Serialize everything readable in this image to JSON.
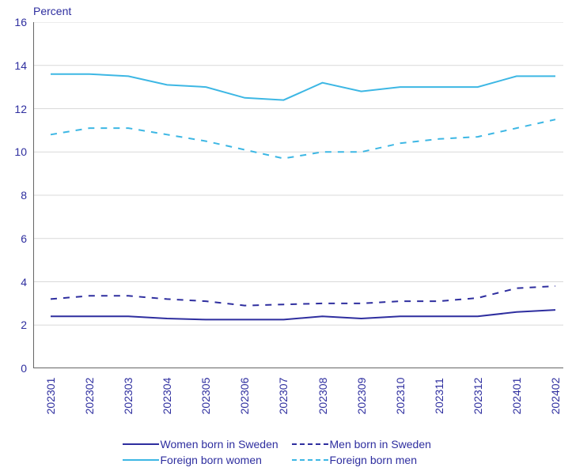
{
  "chart": {
    "type": "line",
    "y_axis_title": "Percent",
    "y_axis_title_color": "#2e2e9f",
    "y_axis_title_fontsize": 14,
    "background_color": "#ffffff",
    "plot_background": "#ffffff",
    "grid_color": "#d9d9d9",
    "axis_line_color": "#666666",
    "tick_color": "#666666",
    "tick_label_color": "#2e2e9f",
    "tick_label_fontsize": 14,
    "ylim": [
      0,
      16
    ],
    "ytick_step": 2,
    "yticks": [
      0,
      2,
      4,
      6,
      8,
      10,
      12,
      14,
      16
    ],
    "x_categories": [
      "202301",
      "202302",
      "202303",
      "202304",
      "202305",
      "202306",
      "202307",
      "202308",
      "202309",
      "202310",
      "202311",
      "202312",
      "202401",
      "202402"
    ],
    "x_tick_rotation": -90,
    "line_width": 2,
    "series": [
      {
        "name": "Women born in Sweden",
        "label": "Women born in Sweden",
        "color": "#2e2e9f",
        "dash": "solid",
        "values": [
          2.4,
          2.4,
          2.4,
          2.3,
          2.25,
          2.25,
          2.25,
          2.4,
          2.3,
          2.4,
          2.4,
          2.4,
          2.6,
          2.7
        ]
      },
      {
        "name": "Men born in Sweden",
        "label": "Men born in Sweden",
        "color": "#2e2e9f",
        "dash": "dashed",
        "values": [
          3.2,
          3.35,
          3.35,
          3.2,
          3.1,
          2.9,
          2.95,
          3.0,
          3.0,
          3.1,
          3.1,
          3.25,
          3.7,
          3.8
        ]
      },
      {
        "name": "Foreign born women",
        "label": "Foreign born women",
        "color": "#3db7e4",
        "dash": "solid",
        "values": [
          13.6,
          13.6,
          13.5,
          13.1,
          13.0,
          12.5,
          12.4,
          13.2,
          12.8,
          13.0,
          13.0,
          13.0,
          13.5,
          13.5
        ]
      },
      {
        "name": "Foreign born men",
        "label": "Foreign born men",
        "color": "#3db7e4",
        "dash": "dashed",
        "values": [
          10.8,
          11.1,
          11.1,
          10.8,
          10.5,
          10.1,
          9.7,
          10.0,
          10.0,
          10.4,
          10.6,
          10.7,
          11.1,
          11.5
        ]
      }
    ],
    "dash_pattern": "8 8",
    "legend_position": "bottom",
    "legend_color": "#2e2e9f",
    "legend_fontsize": 14,
    "legend_rows": [
      [
        "Women born in Sweden",
        "Men born in Sweden"
      ],
      [
        "Foreign born women",
        "Foreign born men"
      ]
    ]
  }
}
